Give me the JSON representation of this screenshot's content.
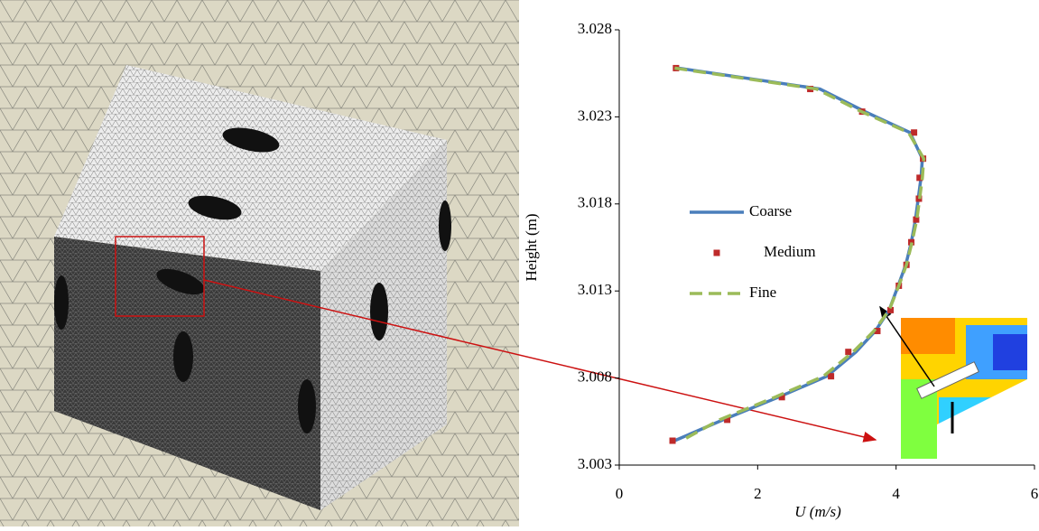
{
  "chart_data": {
    "type": "line",
    "xlabel": "U (m/s)",
    "ylabel": "Height (m)",
    "xlim": [
      0,
      6
    ],
    "xticks": [
      0,
      2,
      4,
      6
    ],
    "ylim": [
      3.003,
      3.028
    ],
    "yticks": [
      3.003,
      3.008,
      3.013,
      3.018,
      3.023,
      3.028
    ],
    "legend": "center-left",
    "series": [
      {
        "name": "Coarse",
        "color": "#4a7ebb",
        "line_style": "solid",
        "x": [
          0.85,
          2.9,
          3.55,
          4.2,
          4.38,
          4.36,
          4.32,
          4.28,
          4.22,
          4.14,
          4.03,
          3.9,
          3.7,
          3.42,
          3.0,
          2.3,
          1.5,
          0.8
        ],
        "values": [
          3.0258,
          3.0246,
          3.0233,
          3.0221,
          3.0206,
          3.0195,
          3.0183,
          3.0171,
          3.0158,
          3.0145,
          3.0133,
          3.0119,
          3.0107,
          3.0095,
          3.0081,
          3.0069,
          3.0056,
          3.0044
        ]
      },
      {
        "name": "Medium",
        "color": "#be2a2a",
        "line_style": "none",
        "x": [
          0.82,
          2.76,
          3.51,
          4.26,
          4.39,
          4.34,
          4.33,
          4.29,
          4.22,
          4.15,
          4.04,
          3.92,
          3.73,
          3.31,
          3.06,
          2.35,
          1.56,
          0.77
        ],
        "values": [
          3.0258,
          3.0246,
          3.0233,
          3.0221,
          3.0206,
          3.0195,
          3.0183,
          3.0171,
          3.0158,
          3.0145,
          3.0133,
          3.0119,
          3.0107,
          3.0095,
          3.0081,
          3.0069,
          3.0056,
          3.0044
        ]
      },
      {
        "name": "Fine",
        "color": "#9bbb59",
        "line_style": "dash",
        "x": [
          0.8,
          2.85,
          3.5,
          4.18,
          4.4,
          4.38,
          4.34,
          4.3,
          4.23,
          4.15,
          4.04,
          3.9,
          3.68,
          3.38,
          2.95,
          2.25,
          1.45,
          0.9
        ],
        "values": [
          3.0258,
          3.0246,
          3.0233,
          3.0221,
          3.0206,
          3.0195,
          3.0183,
          3.0171,
          3.0158,
          3.0145,
          3.0133,
          3.0119,
          3.0107,
          3.0095,
          3.0081,
          3.0069,
          3.0056,
          3.0044
        ]
      }
    ]
  }
}
